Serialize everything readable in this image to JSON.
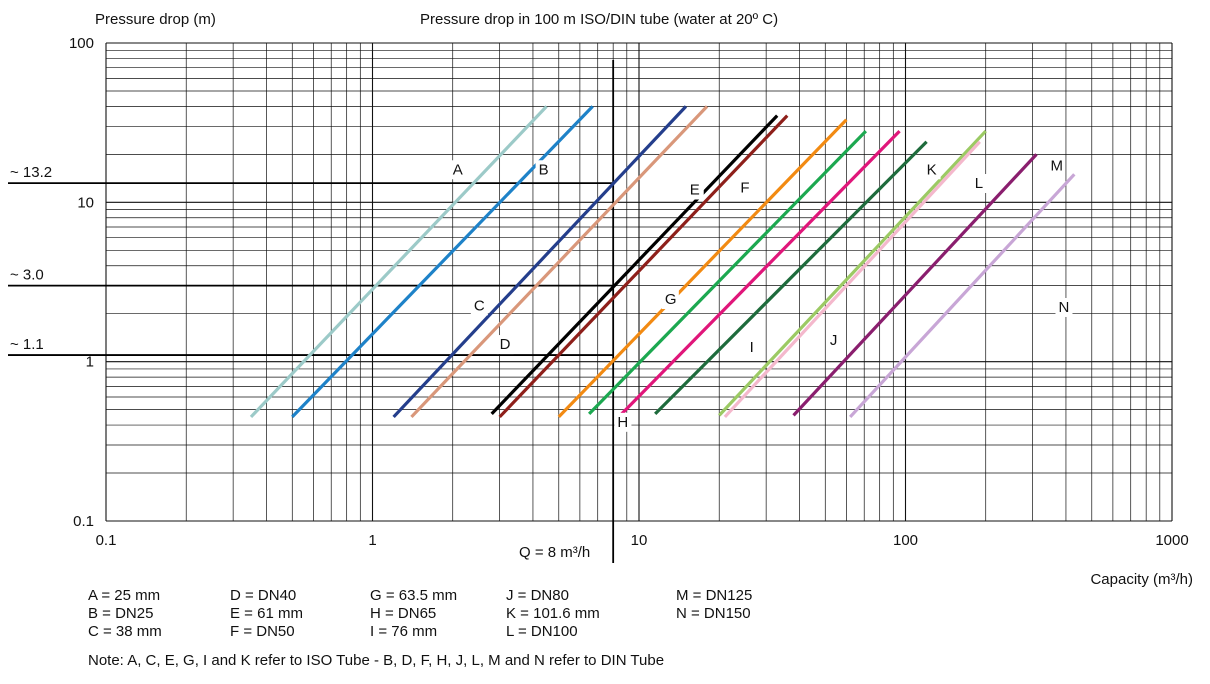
{
  "chart_data": {
    "type": "line",
    "title": "Pressure drop in 100 m ISO/DIN tube (water at 20º C)",
    "ylabel": "Pressure drop (m)",
    "xlabel": "Capacity (m³/h)",
    "x_scale": "log",
    "y_scale": "log",
    "xlim": [
      0.1,
      1000
    ],
    "ylim": [
      0.1,
      100
    ],
    "grid": true,
    "x_ticks": [
      "0.1",
      "1",
      "10",
      "100",
      "1000"
    ],
    "y_ticks": [
      "0.1",
      "1",
      "10",
      "100"
    ],
    "series": [
      {
        "name": "A",
        "color": "#9ccac8",
        "x": [
          0.35,
          4.5
        ],
        "y": [
          0.45,
          40
        ]
      },
      {
        "name": "B",
        "color": "#1e82c8",
        "x": [
          0.5,
          6.7
        ],
        "y": [
          0.45,
          40
        ]
      },
      {
        "name": "C",
        "color": "#243e8c",
        "x": [
          1.2,
          15
        ],
        "y": [
          0.45,
          40
        ]
      },
      {
        "name": "D",
        "color": "#d9977a",
        "x": [
          1.4,
          18
        ],
        "y": [
          0.45,
          40
        ]
      },
      {
        "name": "E",
        "color": "#000000",
        "x": [
          2.8,
          33
        ],
        "y": [
          0.47,
          35
        ]
      },
      {
        "name": "F",
        "color": "#8e1f1a",
        "x": [
          3.0,
          36
        ],
        "y": [
          0.45,
          35
        ]
      },
      {
        "name": "G",
        "color": "#f28a12",
        "x": [
          5.0,
          60
        ],
        "y": [
          0.45,
          33
        ]
      },
      {
        "name": "H",
        "color": "#1ca850",
        "x": [
          6.5,
          71
        ],
        "y": [
          0.47,
          28
        ]
      },
      {
        "name": "I",
        "color": "#e0167a",
        "x": [
          8.5,
          95
        ],
        "y": [
          0.46,
          28
        ]
      },
      {
        "name": "J",
        "color": "#1e6b3c",
        "x": [
          11.5,
          120
        ],
        "y": [
          0.47,
          24
        ]
      },
      {
        "name": "K",
        "color": "#9cca64",
        "x": [
          20,
          200
        ],
        "y": [
          0.46,
          28
        ]
      },
      {
        "name": "L",
        "color": "#f4b8cc",
        "x": [
          21,
          190
        ],
        "y": [
          0.45,
          24
        ]
      },
      {
        "name": "M",
        "color": "#8a1e6e",
        "x": [
          38,
          310
        ],
        "y": [
          0.46,
          20
        ]
      },
      {
        "name": "N",
        "color": "#c8a6d6",
        "x": [
          62,
          430
        ],
        "y": [
          0.45,
          15
        ]
      }
    ],
    "series_labels": [
      {
        "name": "A",
        "x": 2.0,
        "y": 15
      },
      {
        "name": "B",
        "x": 4.2,
        "y": 15
      },
      {
        "name": "C",
        "x": 2.4,
        "y": 2.1
      },
      {
        "name": "D",
        "x": 3.0,
        "y": 1.2
      },
      {
        "name": "E",
        "x": 15.5,
        "y": 11.2
      },
      {
        "name": "F",
        "x": 24.0,
        "y": 11.5
      },
      {
        "name": "G",
        "x": 12.5,
        "y": 2.3
      },
      {
        "name": "H",
        "x": 8.3,
        "y": 0.39
      },
      {
        "name": "I",
        "x": 26.0,
        "y": 1.15
      },
      {
        "name": "J",
        "x": 52.0,
        "y": 1.27
      },
      {
        "name": "K",
        "x": 120,
        "y": 15
      },
      {
        "name": "L",
        "x": 182,
        "y": 12.3
      },
      {
        "name": "M",
        "x": 350,
        "y": 15.8
      },
      {
        "name": "N",
        "x": 375,
        "y": 2.05
      }
    ],
    "reference_lines": [
      {
        "label": "~ 13.2",
        "y": 13.2
      },
      {
        "label": "~ 3.0",
        "y": 3.0
      },
      {
        "label": "~ 1.1",
        "y": 1.1
      }
    ],
    "vertical_line": {
      "label": "Q = 8 m³/h",
      "x": 8
    }
  },
  "legend": {
    "columns": [
      [
        "A = 25 mm",
        "B = DN25",
        "C = 38 mm"
      ],
      [
        "D = DN40",
        "E = 61 mm",
        "F = DN50"
      ],
      [
        "G = 63.5 mm",
        "H = DN65",
        "I = 76 mm"
      ],
      [
        "J = DN80",
        "K = 101.6 mm",
        "L = DN100"
      ],
      [
        "M = DN125",
        "N = DN150"
      ]
    ]
  },
  "note": "Note: A, C, E, G, I and K refer to ISO Tube - B, D, F, H, J, L, M and N refer to DIN Tube"
}
